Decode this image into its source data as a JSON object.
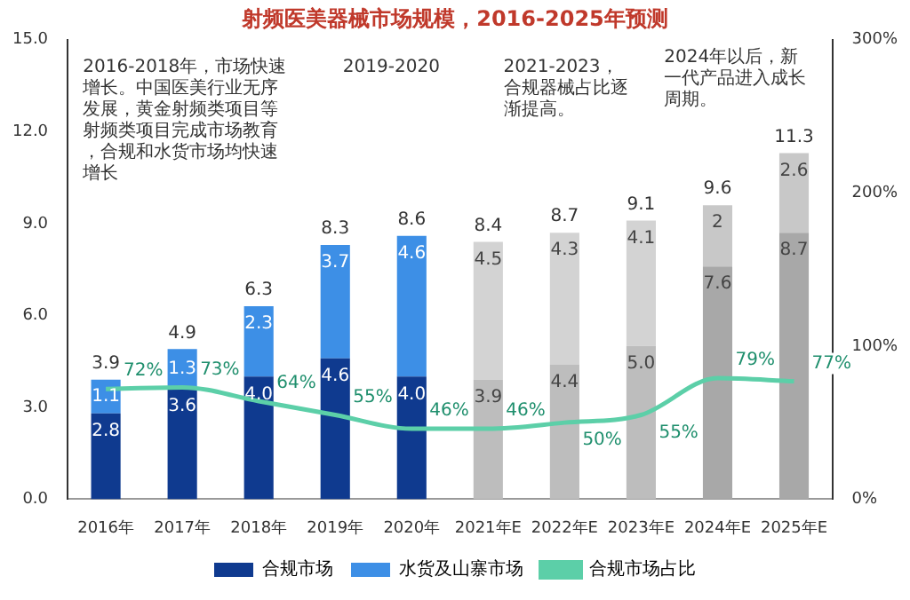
{
  "chart_data": {
    "type": "bar",
    "title": "射频医美器械市场规模，2016-2025年预测",
    "categories": [
      "2016年",
      "2017年",
      "2018年",
      "2019年",
      "2020年",
      "2021年E",
      "2022年E",
      "2023年E",
      "2024年E",
      "2025年E"
    ],
    "stacked": true,
    "series": [
      {
        "name": "合规市场",
        "color": "#0f3a8f",
        "colors": [
          "#0f3a8f",
          "#0f3a8f",
          "#0f3a8f",
          "#0f3a8f",
          "#0f3a8f",
          "#bdbdbd",
          "#bdbdbd",
          "#bdbdbd",
          "#a8a8a8",
          "#a8a8a8"
        ],
        "values": [
          2.8,
          3.6,
          4.0,
          4.6,
          4.0,
          3.9,
          4.4,
          5.0,
          7.6,
          8.7
        ],
        "value_labels": [
          "2.8",
          "3.6",
          "4.0",
          "4.6",
          "4.0",
          "3.9",
          "4.4",
          "5.0",
          "7.6",
          "8.7"
        ]
      },
      {
        "name": "水货及山寨市场",
        "color": "#3d8fe6",
        "colors": [
          "#3d8fe6",
          "#3d8fe6",
          "#3d8fe6",
          "#3d8fe6",
          "#3d8fe6",
          "#d3d3d3",
          "#d3d3d3",
          "#d3d3d3",
          "#c8c8c8",
          "#c8c8c8"
        ],
        "values": [
          1.1,
          1.3,
          2.3,
          3.7,
          4.6,
          4.5,
          4.3,
          4.1,
          2,
          2.6
        ]
      },
      {
        "name": "合规市场占比",
        "type": "line",
        "axis": "y2",
        "color": "#5ccfa8",
        "values": [
          72,
          73,
          64,
          55,
          46,
          46,
          50,
          55,
          79,
          77
        ],
        "value_labels": [
          "72%",
          "73%",
          "64%",
          "55%",
          "46%",
          "46%",
          "50%",
          "55%",
          "79%",
          "77%"
        ]
      }
    ],
    "totals": [
      "3.9",
      "4.9",
      "6.3",
      "8.3",
      "8.6",
      "8.4",
      "8.7",
      "9.1",
      "9.6",
      "11.3"
    ],
    "data_labels": true,
    "ylim": [
      0,
      15
    ],
    "yticks": [
      {
        "value": 0,
        "label": "0.0"
      },
      {
        "value": 3,
        "label": "3.0"
      },
      {
        "value": 6,
        "label": "6.0"
      },
      {
        "value": 9,
        "label": "9.0"
      },
      {
        "value": 12,
        "label": "12.0"
      },
      {
        "value": 15,
        "label": "15.0"
      }
    ],
    "y2lim": [
      0,
      300
    ],
    "y2ticks": [
      {
        "value": 0,
        "label": "0%"
      },
      {
        "value": 100,
        "label": "100%"
      },
      {
        "value": 200,
        "label": "200%"
      },
      {
        "value": 300,
        "label": "300%"
      }
    ],
    "grid": false,
    "legend": "bottom",
    "marker": "none",
    "line_style": "solid",
    "annotations": [
      "2016-2018年，市场快速增长。中国医美行业无序发展，黄金射频类项目等射频类项目完成市场教育，合规和水货市场均快速增长",
      "2019-2020",
      "2021-2023，合规器械占比逐渐提高。",
      "2024年以后，新一代产品进入成长周期。"
    ]
  }
}
